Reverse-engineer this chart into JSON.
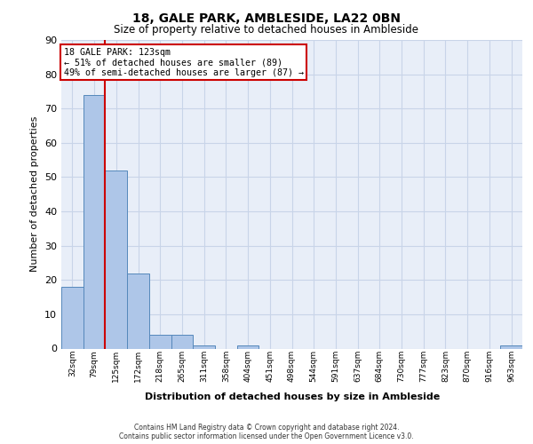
{
  "title": "18, GALE PARK, AMBLESIDE, LA22 0BN",
  "subtitle": "Size of property relative to detached houses in Ambleside",
  "xlabel_bottom": "Distribution of detached houses by size in Ambleside",
  "ylabel": "Number of detached properties",
  "categories": [
    "32sqm",
    "79sqm",
    "125sqm",
    "172sqm",
    "218sqm",
    "265sqm",
    "311sqm",
    "358sqm",
    "404sqm",
    "451sqm",
    "498sqm",
    "544sqm",
    "591sqm",
    "637sqm",
    "684sqm",
    "730sqm",
    "777sqm",
    "823sqm",
    "870sqm",
    "916sqm",
    "963sqm"
  ],
  "bar_values": [
    18,
    74,
    52,
    22,
    4,
    4,
    1,
    0,
    1,
    0,
    0,
    0,
    0,
    0,
    0,
    0,
    0,
    0,
    0,
    0,
    1
  ],
  "bar_color": "#aec6e8",
  "bar_edge_color": "#5588bb",
  "ylim": [
    0,
    90
  ],
  "yticks": [
    0,
    10,
    20,
    30,
    40,
    50,
    60,
    70,
    80,
    90
  ],
  "red_line_x": 125,
  "red_line_color": "#cc0000",
  "annotation_line1": "18 GALE PARK: 123sqm",
  "annotation_line2": "← 51% of detached houses are smaller (89)",
  "annotation_line3": "49% of semi-detached houses are larger (87) →",
  "annotation_box_color": "#ffffff",
  "annotation_box_edge": "#cc0000",
  "grid_color": "#c8d4e8",
  "background_color": "#e8eef8",
  "footer_line1": "Contains HM Land Registry data © Crown copyright and database right 2024.",
  "footer_line2": "Contains public sector information licensed under the Open Government Licence v3.0.",
  "bin_centers": [
    0,
    1,
    2,
    3,
    4,
    5,
    6,
    7,
    8,
    9,
    10,
    11,
    12,
    13,
    14,
    15,
    16,
    17,
    18,
    19,
    20
  ]
}
